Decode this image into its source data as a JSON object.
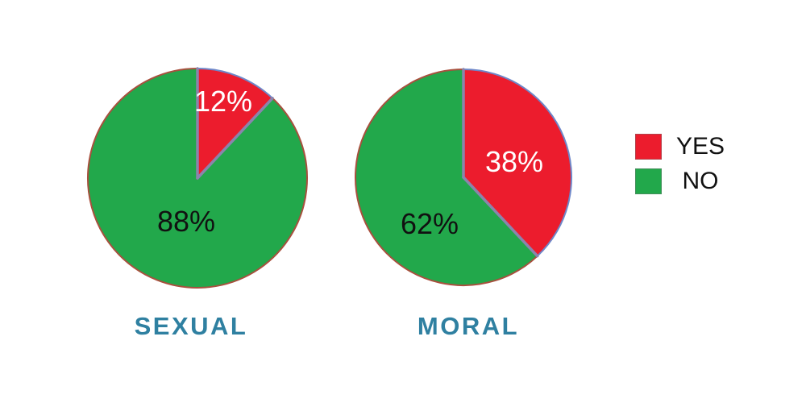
{
  "chart_data": {
    "type": "pie",
    "start_angle": "top",
    "direction": "clockwise",
    "background": "#ffffff",
    "charts": [
      {
        "title": "SEXUAL",
        "slices": [
          {
            "label": "YES",
            "value": 12,
            "display": "12%",
            "color": "#ec1c2d",
            "text_color": "#ffffff"
          },
          {
            "label": "NO",
            "value": 88,
            "display": "88%",
            "color": "#22a84b",
            "text_color": "#111111"
          }
        ]
      },
      {
        "title": "MORAL",
        "slices": [
          {
            "label": "YES",
            "value": 38,
            "display": "38%",
            "color": "#ec1c2d",
            "text_color": "#ffffff"
          },
          {
            "label": "NO",
            "value": 62,
            "display": "62%",
            "color": "#22a84b",
            "text_color": "#111111"
          }
        ]
      }
    ],
    "legend": {
      "position": "right",
      "entries": [
        {
          "label": "YES",
          "color": "#ec1c2d"
        },
        {
          "label": "NO",
          "color": "#22a84b"
        }
      ]
    },
    "style_colors": {
      "divider": "#8b84ad",
      "rim_over_green": "#a8503e",
      "rim_over_red": "#6e87c9",
      "caption": "#2f80a1"
    }
  }
}
